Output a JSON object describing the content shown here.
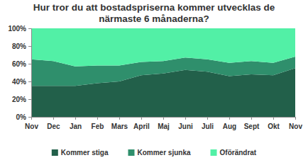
{
  "chart_data": {
    "type": "area",
    "title": "Hur tror du att bostadspriserna kommer utvecklas de\nnärmaste 6 månaderna?",
    "categories": [
      "Nov",
      "Dec",
      "Jan",
      "Feb",
      "Mars",
      "April",
      "Maj",
      "Juni",
      "Juli",
      "Aug",
      "Sept",
      "Okt",
      "Nov"
    ],
    "series": [
      {
        "name": "Kommer stiga",
        "color": "#22604a",
        "values": [
          35,
          35,
          35,
          38,
          40,
          47,
          49,
          53,
          51,
          46,
          48,
          47,
          55
        ]
      },
      {
        "name": "Kommer sjunka",
        "color": "#2f8f6c",
        "values": [
          30,
          28,
          22,
          20,
          18,
          15,
          14,
          14,
          14,
          15,
          15,
          14,
          13
        ]
      },
      {
        "name": "Oförändrat",
        "color": "#52f0a6",
        "values": [
          35,
          37,
          43,
          42,
          42,
          38,
          37,
          33,
          35,
          39,
          37,
          39,
          32
        ]
      }
    ],
    "ylim": [
      0,
      100
    ],
    "yticks": [
      {
        "value": 0,
        "label": "0%"
      },
      {
        "value": 20,
        "label": "20%"
      },
      {
        "value": 40,
        "label": "40%"
      },
      {
        "value": 60,
        "label": "60%"
      },
      {
        "value": 80,
        "label": "80%"
      },
      {
        "value": 100,
        "label": "100%"
      }
    ],
    "stacked": true,
    "grid": false,
    "legend": "bottom"
  }
}
